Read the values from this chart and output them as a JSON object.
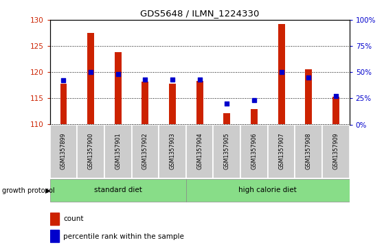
{
  "title": "GDS5648 / ILMN_1224330",
  "samples": [
    "GSM1357899",
    "GSM1357900",
    "GSM1357901",
    "GSM1357902",
    "GSM1357903",
    "GSM1357904",
    "GSM1357905",
    "GSM1357906",
    "GSM1357907",
    "GSM1357908",
    "GSM1357909"
  ],
  "count_values": [
    117.8,
    127.5,
    123.8,
    118.2,
    117.8,
    118.3,
    112.2,
    113.0,
    129.2,
    120.5,
    115.3
  ],
  "percentile_values": [
    42,
    50,
    48,
    43,
    43,
    43,
    20,
    23,
    50,
    45,
    27
  ],
  "ylim_left": [
    110,
    130
  ],
  "ylim_right": [
    0,
    100
  ],
  "yticks_left": [
    110,
    115,
    120,
    125,
    130
  ],
  "yticks_right": [
    0,
    25,
    50,
    75,
    100
  ],
  "ytick_labels_right": [
    "0%",
    "25%",
    "50%",
    "75%",
    "100%"
  ],
  "bar_color": "#cc2200",
  "dot_color": "#0000cc",
  "bg_color": "#ffffff",
  "tick_label_color_left": "#cc2200",
  "tick_label_color_right": "#0000cc",
  "xlabel_bg": "#cccccc",
  "group1_label": "standard diet",
  "group2_label": "high calorie diet",
  "group_label_prefix": "growth protocol",
  "group_bg": "#88dd88",
  "legend_count_label": "count",
  "legend_pct_label": "percentile rank within the sample",
  "bar_width": 0.25,
  "bar_bottom": 110
}
